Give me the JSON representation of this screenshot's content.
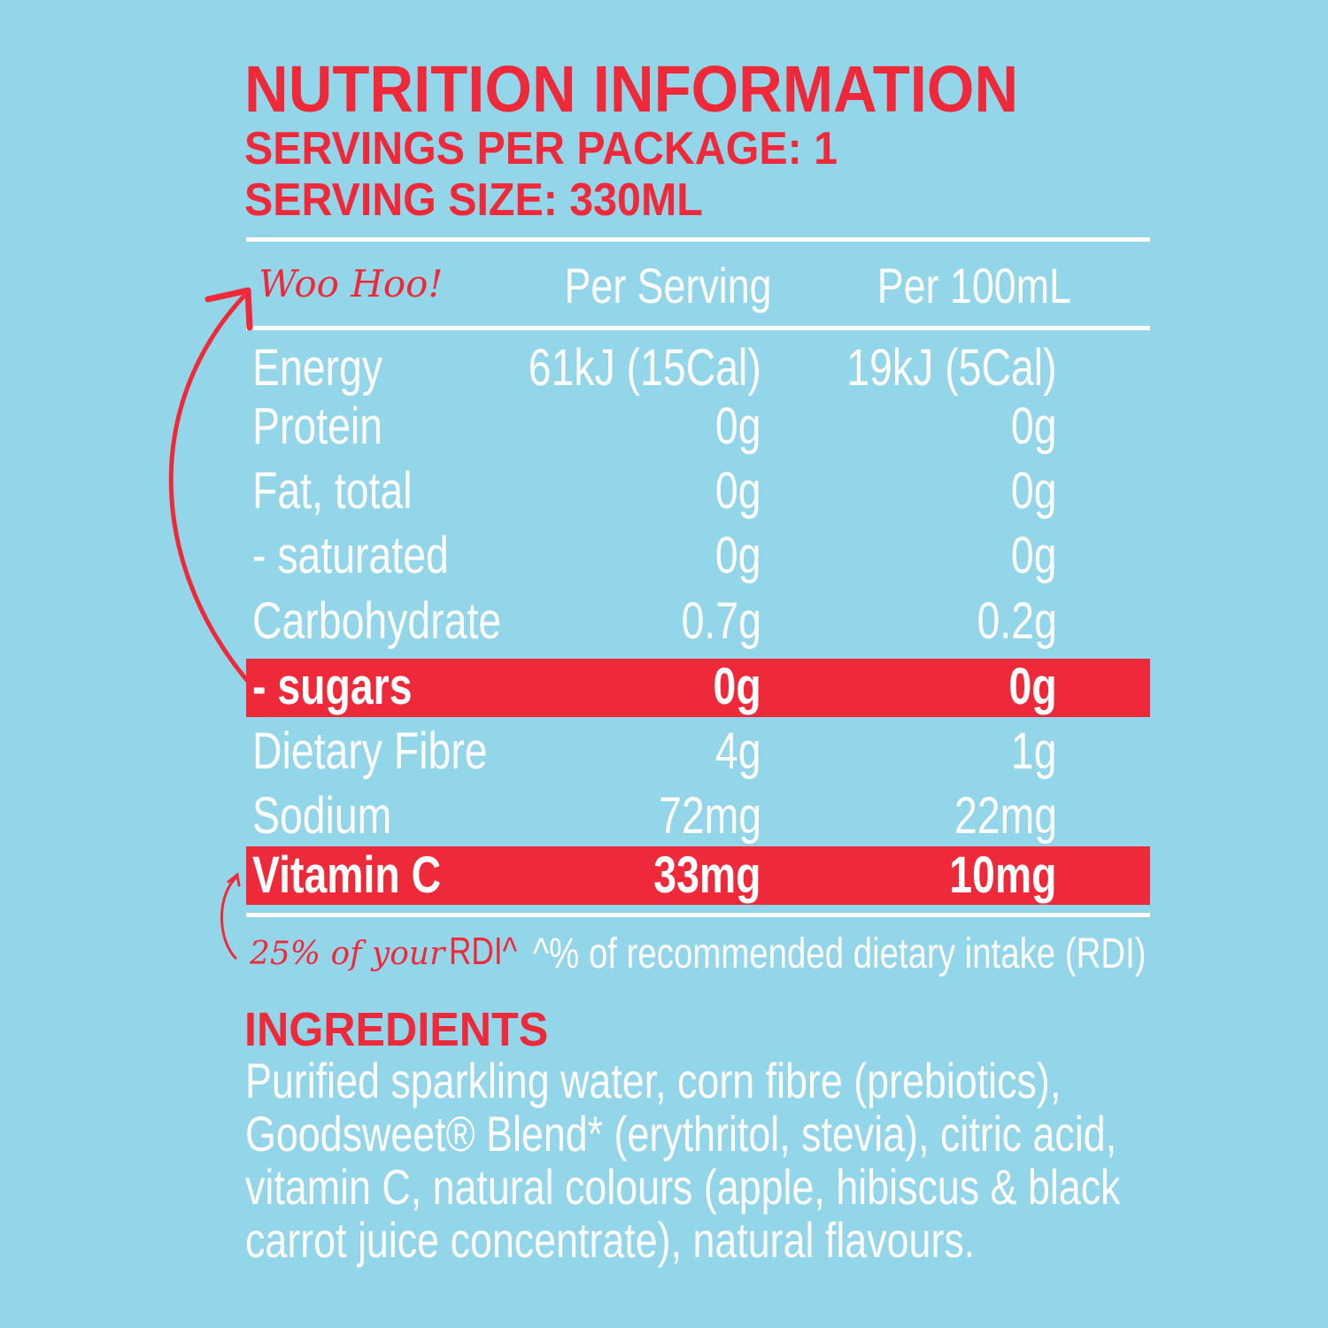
{
  "title": "NUTRITION INFORMATION",
  "servings_per_package": "SERVINGS PER PACKAGE: 1",
  "serving_size": "SERVING SIZE: 330ML",
  "table": {
    "callout": "Woo Hoo!",
    "headers": [
      "Per Serving",
      "Per 100mL"
    ],
    "rows": [
      {
        "label": "Energy",
        "per_serving": "61kJ (15Cal)",
        "per_100ml": "19kJ (5Cal)"
      },
      {
        "label": "Protein",
        "per_serving": "0g",
        "per_100ml": "0g"
      },
      {
        "label": "Fat, total",
        "per_serving": "0g",
        "per_100ml": "0g"
      },
      {
        "label": "- saturated",
        "per_serving": "0g",
        "per_100ml": "0g"
      },
      {
        "label": "Carbohydrate",
        "per_serving": "0.7g",
        "per_100ml": "0.2g"
      },
      {
        "label": "- sugars",
        "per_serving": "0g",
        "per_100ml": "0g"
      },
      {
        "label": "Dietary Fibre",
        "per_serving": "4g",
        "per_100ml": "1g"
      },
      {
        "label": "Sodium",
        "per_serving": "72mg",
        "per_100ml": "22mg"
      },
      {
        "label": "Vitamin C",
        "per_serving": "33mg",
        "per_100ml": "10mg"
      }
    ],
    "rdi_callout_script": "25% of your",
    "rdi_callout": "RDI^",
    "footnote": "^% of recommended dietary intake (RDI)"
  },
  "ingredients": {
    "heading": "INGREDIENTS",
    "lines": [
      "Purified sparkling water, corn fibre (prebiotics),",
      "Goodsweet® Blend* (erythritol, stevia), citric acid,",
      "vitamin C, natural colours (apple, hibiscus & black",
      "carrot juice concentrate), natural flavours."
    ]
  },
  "colors": {
    "background": "#93d5e9",
    "accent": "#ee2a3a",
    "text": "#ffffff"
  }
}
